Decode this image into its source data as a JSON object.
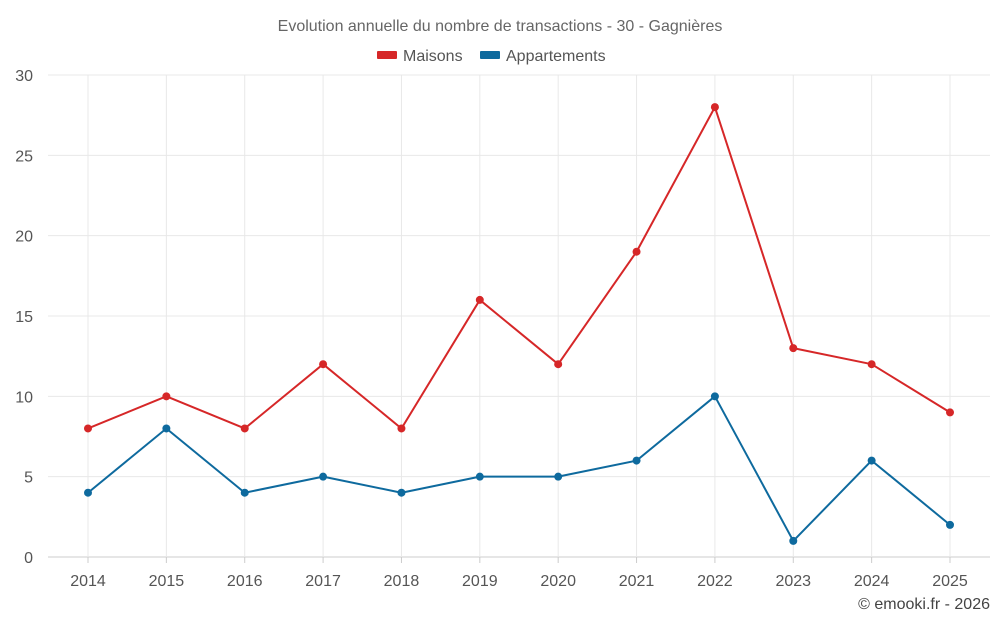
{
  "chart_data": {
    "type": "line",
    "title": "Evolution annuelle du nombre de transactions - 30 - Gagnières",
    "xlabel": "",
    "ylabel": "",
    "categories": [
      "2014",
      "2015",
      "2016",
      "2017",
      "2018",
      "2019",
      "2020",
      "2021",
      "2022",
      "2023",
      "2024",
      "2025"
    ],
    "ylim": [
      0,
      30
    ],
    "yticks": [
      0,
      5,
      10,
      15,
      20,
      25,
      30
    ],
    "grid": true,
    "legend_position": "top-center",
    "series": [
      {
        "name": "Maisons",
        "color": "#d62728",
        "values": [
          8,
          10,
          8,
          12,
          8,
          16,
          12,
          19,
          28,
          13,
          12,
          9
        ]
      },
      {
        "name": "Appartements",
        "color": "#0e6a9e",
        "values": [
          4,
          8,
          4,
          5,
          4,
          5,
          5,
          6,
          10,
          1,
          6,
          2
        ]
      }
    ]
  },
  "credit": "© emooki.fr - 2026"
}
